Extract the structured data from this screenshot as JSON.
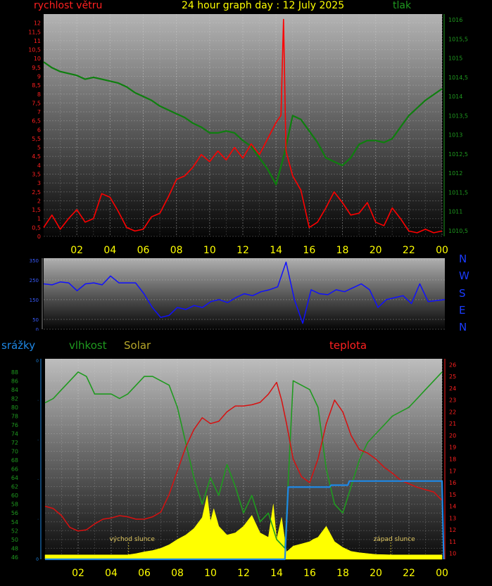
{
  "header": {
    "wind_label": "rychlost větru",
    "title": "24 hour graph day : 12 July 2025",
    "pressure_label": "tlak"
  },
  "compass": [
    "N",
    "W",
    "S",
    "E",
    "N"
  ],
  "bottom_labels": {
    "rain": "srážky",
    "humidity": "vlhkost",
    "solar": "Solar",
    "temperature": "teplota",
    "sunrise": "východ slunce",
    "sunset": "západ slunce"
  },
  "colors": {
    "wind": "#ff0000",
    "pressure": "#008800",
    "direction": "#0000ff",
    "rain": "#1e88e5",
    "humidity": "#1f9a1f",
    "solar": "#ffff00",
    "temperature": "#e01010",
    "x_ticks": "#ffff00"
  },
  "chart_data": [
    {
      "type": "line",
      "title": "24 hour graph day : 12 July 2025",
      "x_ticks": [
        "02",
        "04",
        "06",
        "08",
        "10",
        "12",
        "14",
        "16",
        "18",
        "20",
        "22",
        "00"
      ],
      "x_range": [
        0,
        24
      ],
      "left_axis": {
        "label": "rychlost větru",
        "ylim": [
          0,
          12.5
        ],
        "ticks": [
          "0",
          "0,5",
          "1",
          "1,5",
          "2",
          "2,5",
          "3",
          "3,5",
          "4",
          "4,5",
          "5",
          "5,5",
          "6",
          "6,5",
          "7",
          "7,5",
          "8",
          "8,5",
          "9",
          "9,5",
          "10",
          "10,5",
          "11",
          "11,5",
          "12"
        ]
      },
      "right_axis": {
        "label": "tlak",
        "ylim": [
          1010.35,
          1016.15
        ],
        "ticks": [
          "1010,5",
          "1011",
          "1011,5",
          "1012",
          "1012,5",
          "1013",
          "1013,5",
          "1014",
          "1014,5",
          "1015",
          "1015,5",
          "1016"
        ]
      },
      "series": [
        {
          "name": "rychlost větru",
          "axis": "left",
          "x": [
            0,
            0.5,
            1,
            1.5,
            2,
            2.5,
            3,
            3.5,
            4,
            4.5,
            5,
            5.5,
            6,
            6.5,
            7,
            7.5,
            8,
            8.5,
            9,
            9.5,
            10,
            10.5,
            11,
            11.5,
            12,
            12.5,
            13,
            13.5,
            14,
            14.3,
            14.45,
            14.6,
            15,
            15.5,
            16,
            16.5,
            17,
            17.5,
            18,
            18.5,
            19,
            19.5,
            20,
            20.5,
            21,
            21.5,
            22,
            22.5,
            23,
            23.5,
            24
          ],
          "values": [
            0.5,
            1.2,
            0.4,
            1,
            1.5,
            0.8,
            1,
            2.4,
            2.2,
            1.4,
            0.5,
            0.3,
            0.4,
            1.1,
            1.3,
            2.2,
            3.2,
            3.4,
            3.9,
            4.6,
            4.2,
            4.8,
            4.3,
            5,
            4.4,
            5.2,
            4.6,
            5.5,
            6.4,
            6.8,
            12.2,
            4.8,
            3.4,
            2.6,
            0.5,
            0.8,
            1.6,
            2.5,
            1.9,
            1.2,
            1.3,
            1.9,
            0.8,
            0.6,
            1.6,
            1,
            0.3,
            0.2,
            0.4,
            0.2,
            0.3
          ]
        },
        {
          "name": "tlak",
          "axis": "right",
          "x": [
            0,
            0.5,
            1,
            1.5,
            2,
            2.5,
            3,
            3.5,
            4,
            4.5,
            5,
            5.5,
            6,
            6.5,
            7,
            7.5,
            8,
            8.5,
            9,
            9.5,
            10,
            10.5,
            11,
            11.5,
            12,
            12.5,
            13,
            13.5,
            14,
            14.5,
            15,
            15.5,
            16,
            16.5,
            17,
            17.5,
            18,
            18.5,
            19,
            19.5,
            20,
            20.5,
            21,
            21.5,
            22,
            22.5,
            23,
            23.5,
            24
          ],
          "values": [
            1014.9,
            1014.75,
            1014.65,
            1014.6,
            1014.55,
            1014.45,
            1014.5,
            1014.45,
            1014.4,
            1014.35,
            1014.25,
            1014.1,
            1014,
            1013.9,
            1013.75,
            1013.65,
            1013.55,
            1013.45,
            1013.3,
            1013.2,
            1013.05,
            1013.05,
            1013.1,
            1013.05,
            1012.85,
            1012.7,
            1012.4,
            1012.1,
            1011.7,
            1012.5,
            1013.5,
            1013.4,
            1013.1,
            1012.8,
            1012.4,
            1012.3,
            1012.2,
            1012.4,
            1012.75,
            1012.85,
            1012.85,
            1012.8,
            1012.9,
            1013.2,
            1013.5,
            1013.7,
            1013.9,
            1014.05,
            1014.2
          ]
        }
      ]
    },
    {
      "type": "line",
      "x_range": [
        0,
        24
      ],
      "ylim": [
        0,
        360
      ],
      "y_ticks": [
        "0",
        "50",
        "150",
        "250",
        "350"
      ],
      "series": [
        {
          "name": "N W S E N",
          "x": [
            0,
            0.5,
            1,
            1.5,
            2,
            2.5,
            3,
            3.5,
            4,
            4.5,
            5,
            5.5,
            6,
            6.5,
            7,
            7.5,
            8,
            8.5,
            9,
            9.5,
            10,
            10.5,
            11,
            11.5,
            12,
            12.5,
            13,
            13.5,
            14,
            14.5,
            15,
            15.5,
            16,
            16.5,
            17,
            17.5,
            18,
            18.5,
            19,
            19.5,
            20,
            20.5,
            21,
            21.5,
            22,
            22.5,
            23,
            23.5,
            24
          ],
          "values": [
            230,
            225,
            240,
            235,
            195,
            230,
            235,
            225,
            270,
            235,
            235,
            235,
            180,
            110,
            60,
            70,
            110,
            100,
            120,
            110,
            140,
            150,
            135,
            160,
            180,
            170,
            190,
            200,
            215,
            340,
            150,
            30,
            200,
            180,
            175,
            200,
            190,
            210,
            230,
            200,
            110,
            150,
            160,
            170,
            130,
            230,
            140,
            145,
            150
          ]
        }
      ]
    },
    {
      "type": "line",
      "x_ticks": [
        "02",
        "04",
        "06",
        "08",
        "10",
        "12",
        "14",
        "16",
        "18",
        "20",
        "22",
        "00"
      ],
      "x_range": [
        0,
        24
      ],
      "annotations": [
        "východ slunce",
        "západ slunce"
      ],
      "left_axis": {
        "label": "vlhkost",
        "ylim": [
          45.5,
          91
        ],
        "ticks": [
          "46",
          "48",
          "50",
          "52",
          "54",
          "56",
          "58",
          "60",
          "62",
          "64",
          "66",
          "68",
          "70",
          "72",
          "74",
          "76",
          "78",
          "80",
          "82",
          "84",
          "86",
          "88"
        ]
      },
      "right_axis": {
        "label": "teplota",
        "ylim": [
          9.5,
          26.5
        ],
        "ticks": [
          "10",
          "11",
          "12",
          "13",
          "14",
          "15",
          "16",
          "17",
          "18",
          "19",
          "20",
          "21",
          "22",
          "23",
          "24",
          "25",
          "26"
        ]
      },
      "rain_axis": {
        "label": "srážky",
        "ylim": [
          0,
          1
        ],
        "ticks": [
          "0",
          "·",
          "·",
          "·",
          "·",
          "0"
        ]
      },
      "series": [
        {
          "name": "vlhkost",
          "axis": "left",
          "x": [
            0,
            0.5,
            1,
            1.5,
            2,
            2.5,
            3,
            3.5,
            4,
            4.5,
            5,
            5.5,
            6,
            6.5,
            7,
            7.5,
            8,
            8.5,
            9,
            9.5,
            10,
            10.5,
            11,
            11.5,
            12,
            12.5,
            13,
            13.5,
            14,
            14.5,
            15,
            15.5,
            16,
            16.5,
            17,
            17.5,
            18,
            18.5,
            19,
            19.5,
            20,
            20.5,
            21,
            21.5,
            22,
            22.5,
            23,
            23.5,
            24
          ],
          "values": [
            81,
            82,
            84,
            86,
            88,
            87,
            83,
            83,
            83,
            82,
            83,
            85,
            87,
            87,
            86,
            85,
            80,
            72,
            64,
            58,
            64,
            60,
            67,
            62,
            56,
            60,
            54,
            56,
            50,
            48,
            86,
            85,
            84,
            80,
            66,
            58,
            56,
            62,
            68,
            72,
            74,
            76,
            78,
            79,
            80,
            82,
            84,
            86,
            88
          ]
        },
        {
          "name": "teplota",
          "axis": "right",
          "x": [
            0,
            0.5,
            1,
            1.5,
            2,
            2.5,
            3,
            3.5,
            4,
            4.5,
            5,
            5.5,
            6,
            6.5,
            7,
            7.5,
            8,
            8.5,
            9,
            9.5,
            10,
            10.5,
            11,
            11.5,
            12,
            12.5,
            13,
            13.5,
            14,
            14.3,
            14.6,
            15,
            15.5,
            16,
            16.5,
            17,
            17.5,
            18,
            18.5,
            19,
            19.5,
            20,
            20.5,
            21,
            21.5,
            22,
            22.5,
            23,
            23.5,
            24
          ],
          "values": [
            14,
            13.8,
            13.2,
            12.2,
            11.9,
            12,
            12.5,
            12.9,
            13,
            13.2,
            13.1,
            12.9,
            12.9,
            13.1,
            13.5,
            15,
            17,
            19,
            20.5,
            21.5,
            21,
            21.2,
            22,
            22.5,
            22.5,
            22.6,
            22.8,
            23.5,
            24.5,
            23,
            21,
            18,
            16.5,
            16,
            18,
            21,
            23,
            22,
            20,
            18.8,
            18.5,
            18,
            17.3,
            16.8,
            16.2,
            15.9,
            15.6,
            15.4,
            15.2,
            14.5
          ]
        },
        {
          "name": "Solar",
          "axis": "left",
          "x": [
            0,
            5,
            5.5,
            6,
            6.5,
            7,
            7.5,
            8,
            8.5,
            9,
            9.5,
            9.8,
            10,
            10.2,
            10.5,
            11,
            11.5,
            12,
            12.5,
            13,
            13.5,
            13.8,
            14,
            14.3,
            14.6,
            15,
            15.5,
            16,
            16.2,
            16.5,
            16.8,
            17,
            17.5,
            18,
            18.5,
            19,
            19.5,
            20,
            21,
            22,
            24
          ],
          "values": [
            46.5,
            46.5,
            46.8,
            47.2,
            47.5,
            48,
            48.8,
            50,
            51,
            52.5,
            55,
            60,
            54,
            57,
            53,
            51,
            51.5,
            53,
            55.5,
            51.5,
            50.5,
            58,
            50,
            55,
            47.2,
            48.5,
            49,
            49.5,
            50,
            50.5,
            52,
            53,
            49.5,
            48.2,
            47.3,
            47,
            46.8,
            46.6,
            46.5,
            46.5,
            46.5
          ]
        },
        {
          "name": "srážky",
          "axis": "rain",
          "x": [
            0,
            14.5,
            14.7,
            17.2,
            17.3,
            18.3,
            18.4,
            24,
            24.1
          ],
          "values": [
            0,
            0,
            0.36,
            0.36,
            0.37,
            0.37,
            0.39,
            0.39,
            0
          ]
        }
      ]
    }
  ]
}
